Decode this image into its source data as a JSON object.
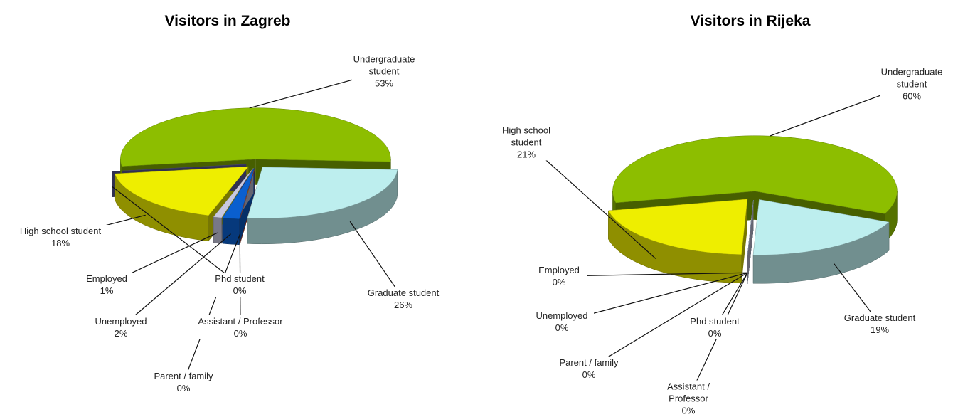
{
  "chart_data": [
    {
      "type": "pie3d",
      "title": "Visitors in Zagreb",
      "categories": [
        "Undergraduate student",
        "Graduate student",
        "Assistant / Professor",
        "Parent / family",
        "Unemployed",
        "Employed",
        "High school student",
        "Phd student"
      ],
      "values": [
        53,
        26,
        0,
        0,
        2,
        1,
        18,
        0
      ],
      "value_labels": [
        "53%",
        "26%",
        "0%",
        "0%",
        "2%",
        "1%",
        "18%",
        "0%"
      ],
      "colors": [
        "#8dbe00",
        "#bdeeee",
        "#008aa8",
        "#d04020",
        "#0a5fcf",
        "#c8c8e0",
        "#eeee00",
        "#6060a0"
      ]
    },
    {
      "type": "pie3d",
      "title": "Visitors in Rijeka",
      "categories": [
        "Undergraduate student",
        "Graduate student",
        "Phd student",
        "Assistant / Professor",
        "Parent / family",
        "Unemployed",
        "Employed",
        "High school student"
      ],
      "values": [
        60,
        19,
        0,
        0,
        0,
        0,
        0,
        21
      ],
      "value_labels": [
        "60%",
        "19%",
        "0%",
        "0%",
        "0%",
        "0%",
        "0%",
        "21%"
      ],
      "colors": [
        "#8dbe00",
        "#bdeeee",
        "#003f80",
        "#0a5fcf",
        "#008aa8",
        "#c8c8e0",
        "#c8c8e0",
        "#eeee00"
      ]
    }
  ]
}
